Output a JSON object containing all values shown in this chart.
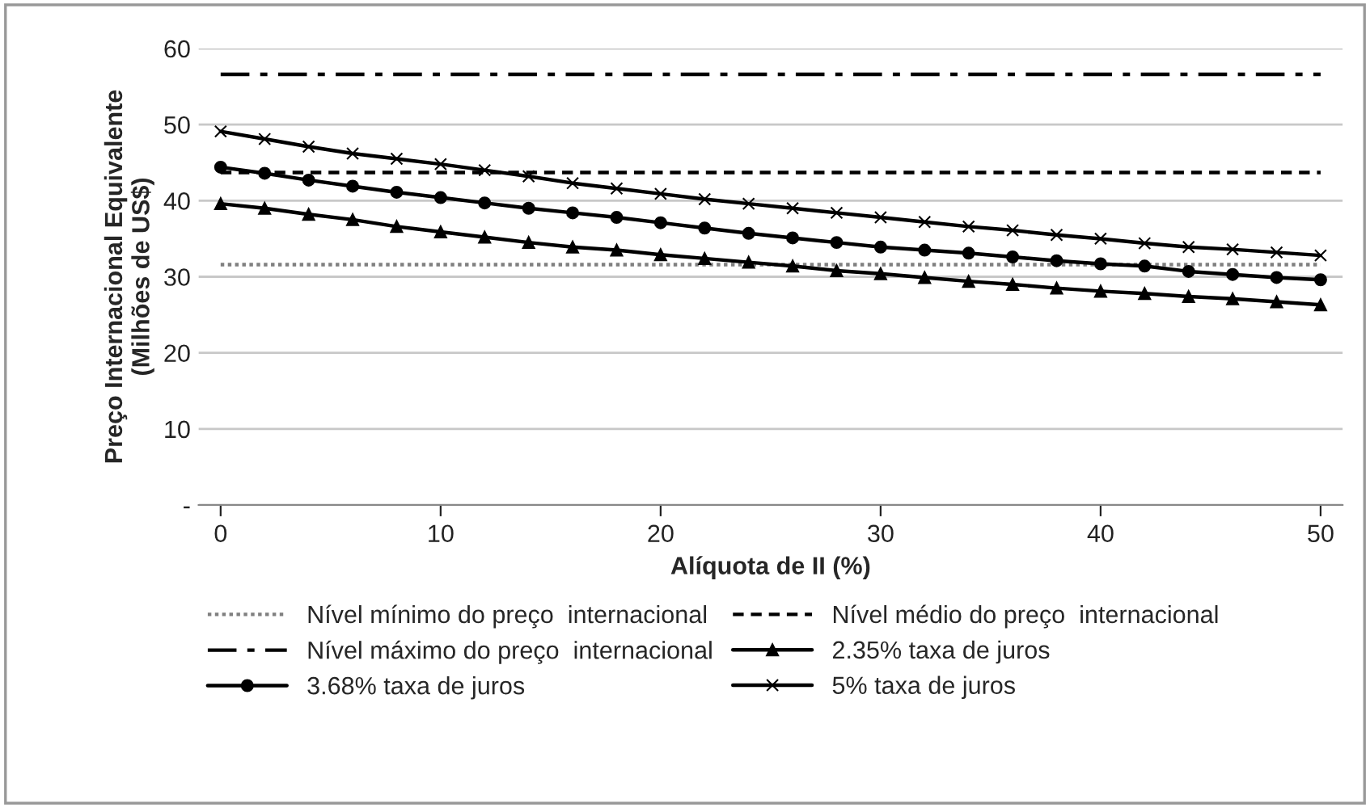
{
  "chart_data": {
    "type": "line",
    "xlabel": "Alíquota de II (%)",
    "ylabel": "Preço Internacional Equivalente\n(Milhões de US$)",
    "xlim": [
      -1,
      51
    ],
    "xticks": [
      0,
      10,
      20,
      30,
      40,
      50
    ],
    "ylim": [
      0,
      60
    ],
    "yticks": [
      {
        "value": 0,
        "label": "-"
      },
      10,
      20,
      30,
      40,
      50,
      60
    ],
    "grid": "y",
    "legend": "bottom",
    "series": [
      {
        "name": "Nível mínimo do preço  internacional",
        "color": "#808080",
        "line_style": "dotted",
        "marker": "none",
        "x": [
          0,
          50
        ],
        "values": [
          31.6,
          31.6
        ]
      },
      {
        "name": "Nível médio do preço  internacional",
        "color": "#000000",
        "line_style": "dashed",
        "marker": "none",
        "x": [
          0,
          50
        ],
        "values": [
          43.7,
          43.7
        ]
      },
      {
        "name": "Nível máximo do preço  internacional",
        "color": "#000000",
        "line_style": "dashdot",
        "marker": "none",
        "x": [
          0,
          50
        ],
        "values": [
          56.6,
          56.6
        ]
      },
      {
        "name": "2.35% taxa de juros",
        "color": "#000000",
        "line_style": "solid",
        "marker": "triangle",
        "x": [
          0,
          2,
          4,
          6,
          8,
          10,
          12,
          14,
          16,
          18,
          20,
          22,
          24,
          26,
          28,
          30,
          32,
          34,
          36,
          38,
          40,
          42,
          44,
          46,
          48,
          50
        ],
        "values": [
          39.6,
          39.0,
          38.2,
          37.5,
          36.6,
          35.9,
          35.2,
          34.5,
          33.9,
          33.5,
          32.9,
          32.4,
          31.9,
          31.4,
          30.8,
          30.4,
          29.9,
          29.4,
          29.0,
          28.5,
          28.1,
          27.8,
          27.4,
          27.1,
          26.7,
          26.3
        ]
      },
      {
        "name": "3.68% taxa de juros",
        "color": "#000000",
        "line_style": "solid",
        "marker": "circle",
        "x": [
          0,
          2,
          4,
          6,
          8,
          10,
          12,
          14,
          16,
          18,
          20,
          22,
          24,
          26,
          28,
          30,
          32,
          34,
          36,
          38,
          40,
          42,
          44,
          46,
          48,
          50
        ],
        "values": [
          44.4,
          43.6,
          42.7,
          41.9,
          41.1,
          40.4,
          39.7,
          39.0,
          38.4,
          37.8,
          37.1,
          36.4,
          35.7,
          35.1,
          34.5,
          33.9,
          33.5,
          33.1,
          32.6,
          32.1,
          31.7,
          31.4,
          30.7,
          30.3,
          29.9,
          29.6
        ]
      },
      {
        "name": "5% taxa de juros",
        "color": "#000000",
        "line_style": "solid",
        "marker": "cross",
        "x": [
          0,
          2,
          4,
          6,
          8,
          10,
          12,
          14,
          16,
          18,
          20,
          22,
          24,
          26,
          28,
          30,
          32,
          34,
          36,
          38,
          40,
          42,
          44,
          46,
          48,
          50
        ],
        "values": [
          49.1,
          48.1,
          47.1,
          46.2,
          45.5,
          44.8,
          44.0,
          43.2,
          42.3,
          41.6,
          40.9,
          40.2,
          39.6,
          39.0,
          38.4,
          37.8,
          37.2,
          36.6,
          36.1,
          35.5,
          35.0,
          34.4,
          33.9,
          33.6,
          33.2,
          32.8
        ]
      }
    ]
  }
}
